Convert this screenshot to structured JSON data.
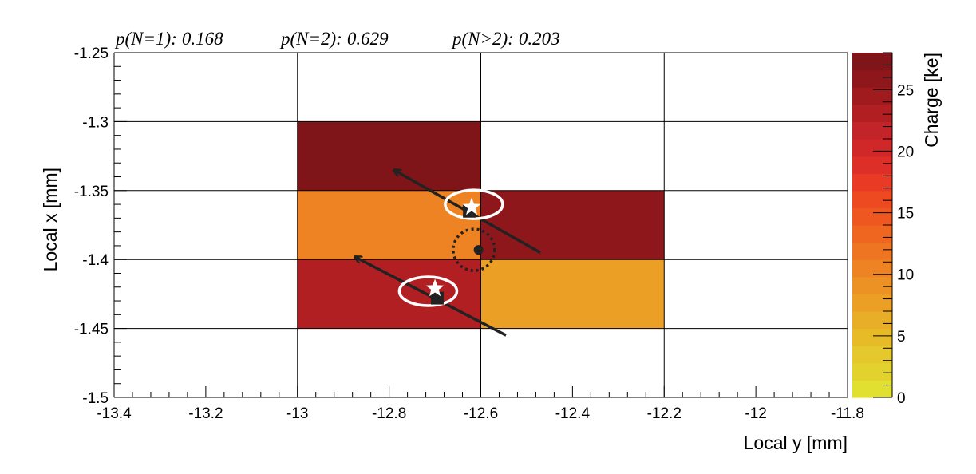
{
  "chart_data": {
    "type": "heatmap",
    "title": "",
    "annotations": [
      {
        "label": "p(N=1):",
        "value": "0.168"
      },
      {
        "label": "p(N=2):",
        "value": "0.629"
      },
      {
        "label": "p(N>2):",
        "value": "0.203"
      }
    ],
    "xlabel": "Local y [mm]",
    "ylabel": "Local x [mm]",
    "zlabel": "Charge [ke]",
    "xlim": [
      -13.4,
      -11.8
    ],
    "ylim": [
      -1.5,
      -1.25
    ],
    "zlim": [
      0,
      28
    ],
    "x_bin_edges": [
      -13.4,
      -13.0,
      -12.6,
      -12.2,
      -11.8
    ],
    "y_bin_edges": [
      -1.5,
      -1.45,
      -1.4,
      -1.35,
      -1.3,
      -1.25
    ],
    "x_ticks": [
      "-13.4",
      "-13.2",
      "-13",
      "-12.8",
      "-12.6",
      "-12.4",
      "-12.2",
      "-12",
      "-11.8"
    ],
    "y_ticks": [
      "-1.25",
      "-1.3",
      "-1.35",
      "-1.4",
      "-1.45",
      "-1.5"
    ],
    "z_ticks": [
      "0",
      "5",
      "10",
      "15",
      "20",
      "25"
    ],
    "grid": true,
    "cells": [
      {
        "x": [
          -13.0,
          -12.6
        ],
        "y": [
          -1.35,
          -1.3
        ],
        "charge": 27.5
      },
      {
        "x": [
          -13.0,
          -12.6
        ],
        "y": [
          -1.4,
          -1.35
        ],
        "charge": 10.5
      },
      {
        "x": [
          -12.6,
          -12.2
        ],
        "y": [
          -1.4,
          -1.35
        ],
        "charge": 26.5
      },
      {
        "x": [
          -13.0,
          -12.6
        ],
        "y": [
          -1.45,
          -1.4
        ],
        "charge": 22.5
      },
      {
        "x": [
          -12.6,
          -12.2
        ],
        "y": [
          -1.45,
          -1.4
        ],
        "charge": 7.0
      }
    ],
    "markers": {
      "squares": [
        {
          "x": -12.625,
          "y": -1.365
        },
        {
          "x": -12.695,
          "y": -1.428
        }
      ],
      "stars": [
        {
          "x": -12.62,
          "y": -1.362
        },
        {
          "x": -12.7,
          "y": -1.421
        }
      ],
      "ellipses": [
        {
          "x": -12.615,
          "y": -1.36
        },
        {
          "x": -12.715,
          "y": -1.423
        }
      ],
      "center_dot": {
        "x": -12.605,
        "y": -1.393
      },
      "dotted_circle": {
        "x": -12.615,
        "y": -1.393
      }
    },
    "tracks": [
      {
        "from": {
          "x": -12.47,
          "y": -1.395
        },
        "to": {
          "x": -12.79,
          "y": -1.335
        }
      },
      {
        "from": {
          "x": -12.545,
          "y": -1.455
        },
        "to": {
          "x": -12.875,
          "y": -1.398
        }
      }
    ],
    "colors": {
      "palette": [
        "#e1e030",
        "#e3d12d",
        "#e5c82b",
        "#e7bb28",
        "#e9ae27",
        "#eba025",
        "#ec9124",
        "#ee8323",
        "#ee7522",
        "#ef6621",
        "#ef5721",
        "#ee4a22",
        "#e83a24",
        "#dd2e27",
        "#d02829",
        "#c3242a",
        "#b11f22",
        "#a01b1d",
        "#8e171b",
        "#7f1518"
      ],
      "grid": "#000000",
      "tracks": "#222222",
      "markers": "#222222",
      "ellipses": "#ffffff"
    }
  }
}
